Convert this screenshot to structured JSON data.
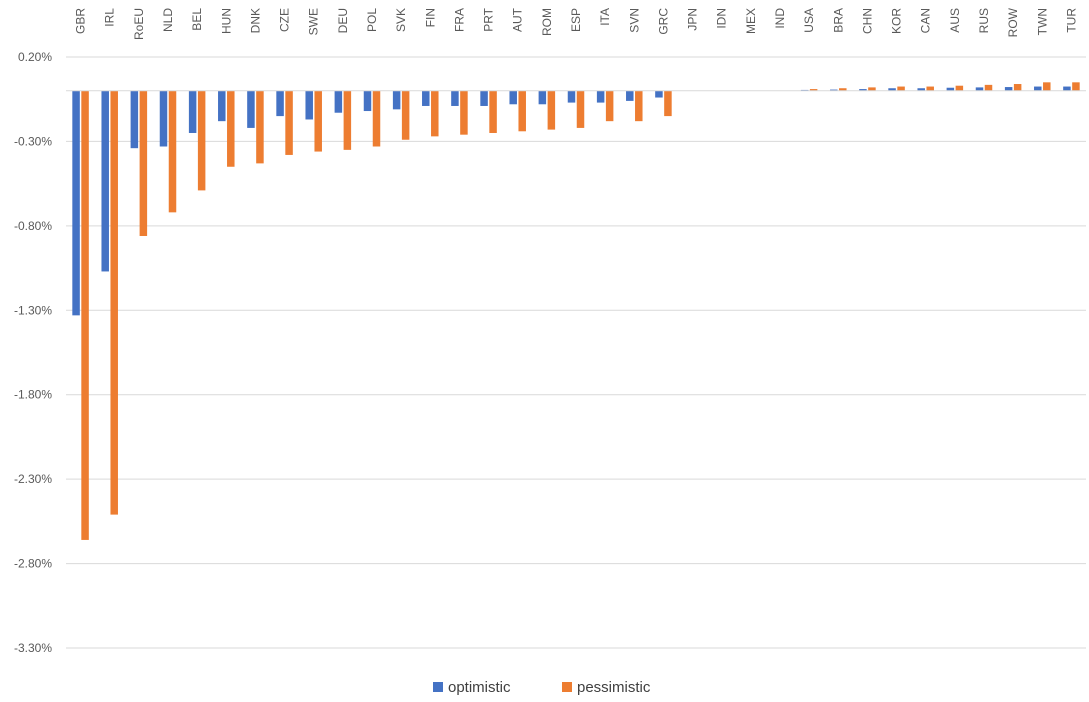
{
  "chart_data": {
    "type": "bar",
    "categories": [
      "GBR",
      "IRL",
      "RoEU",
      "NLD",
      "BEL",
      "HUN",
      "DNK",
      "CZE",
      "SWE",
      "DEU",
      "POL",
      "SVK",
      "FIN",
      "FRA",
      "PRT",
      "AUT",
      "ROM",
      "ESP",
      "ITA",
      "SVN",
      "GRC",
      "JPN",
      "IDN",
      "MEX",
      "IND",
      "USA",
      "BRA",
      "CHN",
      "KOR",
      "CAN",
      "AUS",
      "RUS",
      "ROW",
      "TWN",
      "TUR"
    ],
    "series": [
      {
        "name": "optimistic",
        "color": "#4472C4",
        "values": [
          -1.33,
          -1.07,
          -0.34,
          -0.33,
          -0.25,
          -0.18,
          -0.22,
          -0.15,
          -0.17,
          -0.13,
          -0.12,
          -0.11,
          -0.09,
          -0.09,
          -0.09,
          -0.08,
          -0.08,
          -0.07,
          -0.07,
          -0.06,
          -0.04,
          0,
          0,
          0,
          0,
          0.005,
          0.007,
          0.01,
          0.015,
          0.015,
          0.018,
          0.02,
          0.022,
          0.025,
          0.025
        ]
      },
      {
        "name": "pessimistic",
        "color": "#ED7D31",
        "values": [
          -2.66,
          -2.51,
          -0.86,
          -0.72,
          -0.59,
          -0.45,
          -0.43,
          -0.38,
          -0.36,
          -0.35,
          -0.33,
          -0.29,
          -0.27,
          -0.26,
          -0.25,
          -0.24,
          -0.23,
          -0.22,
          -0.18,
          -0.18,
          -0.15,
          0,
          0,
          0,
          0,
          0.01,
          0.015,
          0.02,
          0.025,
          0.025,
          0.03,
          0.035,
          0.04,
          0.05,
          0.05
        ]
      }
    ],
    "ylim": [
      -3.3,
      0.2
    ],
    "yticks": [
      "0.20%",
      "-0.30%",
      "-0.80%",
      "-1.30%",
      "-1.80%",
      "-2.30%",
      "-2.80%",
      "-3.30%"
    ],
    "grid": true,
    "legend_position": "bottom",
    "title": "",
    "xlabel": "",
    "ylabel": ""
  }
}
